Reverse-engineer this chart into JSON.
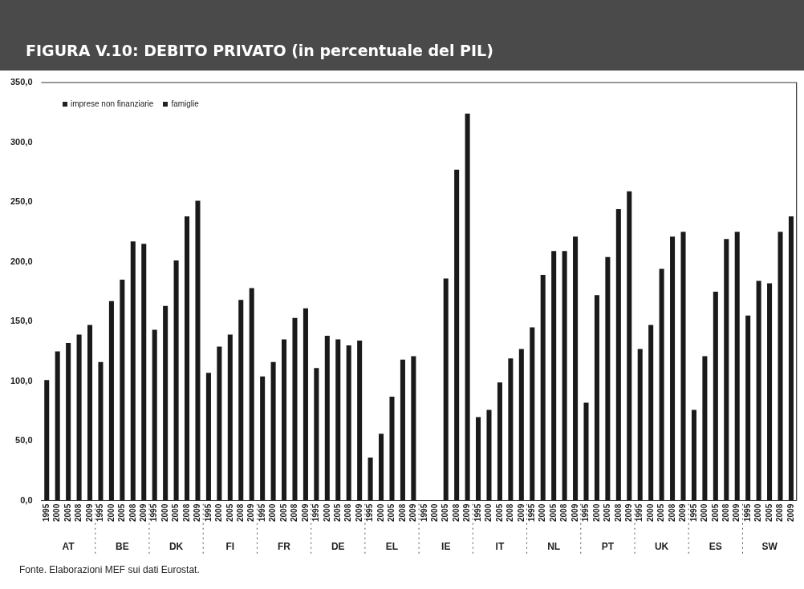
{
  "chart_data": {
    "type": "bar",
    "title": "FIGURA V.10: DEBITO PRIVATO (in percentuale del PIL)",
    "categories": [
      "1995",
      "2000",
      "2005",
      "2008",
      "2009",
      "1995",
      "2000",
      "2005",
      "2008",
      "2009",
      "1995",
      "2000",
      "2005",
      "2008",
      "2009",
      "1995",
      "2000",
      "2005",
      "2008",
      "2009",
      "1995",
      "2000",
      "2005",
      "2008",
      "2009",
      "1995",
      "2000",
      "2005",
      "2008",
      "2009",
      "1995",
      "2000",
      "2005",
      "2008",
      "2009",
      "1995",
      "2000",
      "2005",
      "2008",
      "2009",
      "1995",
      "2000",
      "2005",
      "2008",
      "2009",
      "1995",
      "2000",
      "2005",
      "2008",
      "2009",
      "1995",
      "2000",
      "2005",
      "2008",
      "2009",
      "1995",
      "2000",
      "2005",
      "2008",
      "2009",
      "1995",
      "2000",
      "2005",
      "2008",
      "2009",
      "1995",
      "2000",
      "2005",
      "2008",
      "2009"
    ],
    "values": [
      101,
      125,
      132,
      139,
      147,
      116,
      167,
      185,
      217,
      215,
      143,
      163,
      201,
      238,
      251,
      107,
      129,
      139,
      168,
      178,
      104,
      116,
      135,
      153,
      161,
      111,
      138,
      135,
      130,
      134,
      36,
      56,
      87,
      118,
      121,
      null,
      null,
      186,
      277,
      324,
      70,
      76,
      99,
      119,
      127,
      145,
      189,
      209,
      209,
      221,
      82,
      172,
      204,
      244,
      259,
      127,
      147,
      194,
      221,
      225,
      76,
      121,
      175,
      219,
      225,
      155,
      184,
      182,
      225,
      238
    ],
    "color": "#1a1a1a",
    "ylim": [
      0,
      350
    ],
    "yticks": [
      {
        "value": 0,
        "label": "0,0"
      },
      {
        "value": 50,
        "label": "50,0"
      },
      {
        "value": 100,
        "label": "100,0"
      },
      {
        "value": 150,
        "label": "150,0"
      },
      {
        "value": 200,
        "label": "200,0"
      },
      {
        "value": 250,
        "label": "250,0"
      },
      {
        "value": 300,
        "label": "300,0"
      },
      {
        "value": 350,
        "label": "350,0"
      }
    ],
    "grid": false,
    "annotations": [
      "imprese non finanziarie",
      "famiglie",
      "AT",
      "BE",
      "DK",
      "FI",
      "FR",
      "DE",
      "EL",
      "IE",
      "IT",
      "NL",
      "PT",
      "UK",
      "ES",
      "SW",
      "Fonte. Elaborazioni MEF sui dati Eurostat."
    ]
  }
}
